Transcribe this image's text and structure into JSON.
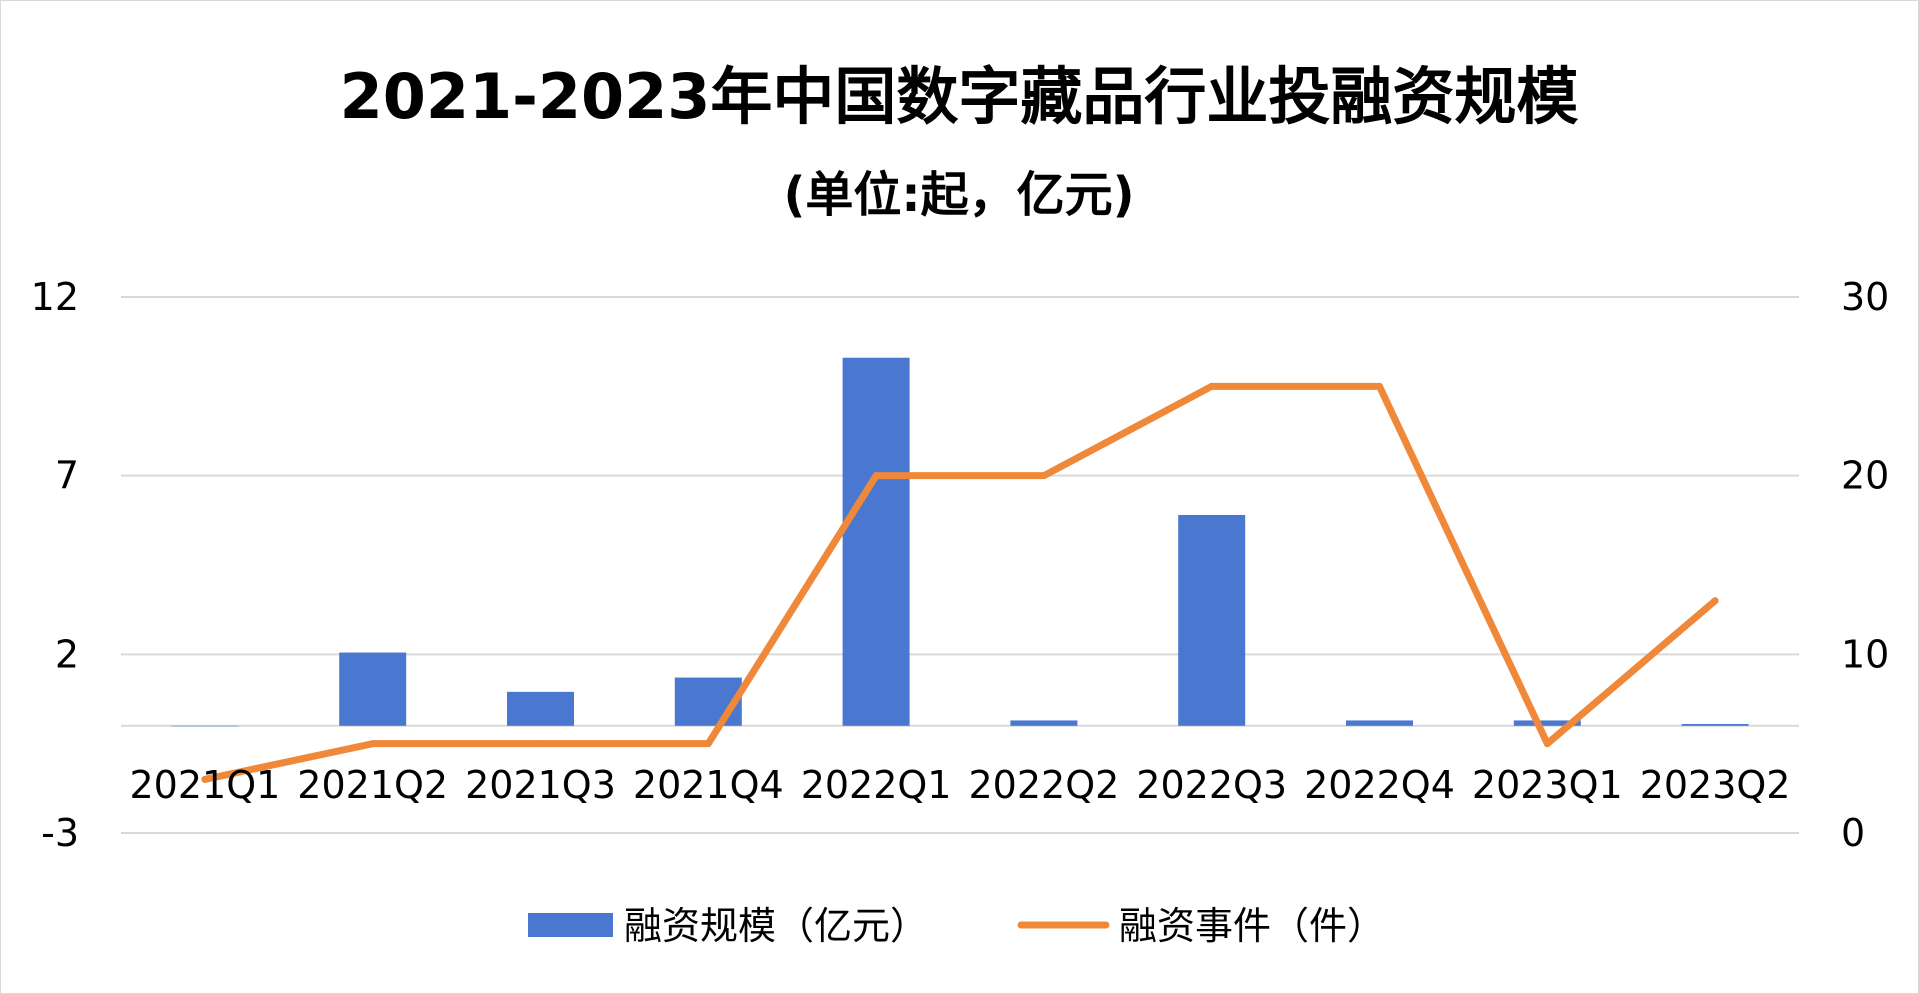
{
  "chart_data": {
    "type": "bar+line",
    "title": "2021-2023年中国数字藏品行业投融资规模",
    "subtitle": "(单位:起，亿元)",
    "categories": [
      "2021Q1",
      "2021Q2",
      "2021Q3",
      "2021Q4",
      "2022Q1",
      "2022Q2",
      "2022Q3",
      "2022Q4",
      "2023Q1",
      "2023Q2"
    ],
    "series": [
      {
        "name": "融资规模（亿元）",
        "type": "bar",
        "axis": "left",
        "color": "#4a78d0",
        "values": [
          0,
          2.05,
          0.95,
          1.35,
          10.3,
          0.15,
          5.9,
          0.15,
          0.15,
          0.05
        ]
      },
      {
        "name": "融资事件（件）",
        "type": "line",
        "axis": "right",
        "color": "#f0883a",
        "values": [
          3,
          5,
          5,
          5,
          20,
          20,
          25,
          25,
          5,
          13
        ]
      }
    ],
    "y_left": {
      "min": -3,
      "max": 12,
      "ticks": [
        "12",
        "7",
        "2",
        "-3"
      ],
      "tick_values": [
        12,
        7,
        2,
        -3
      ]
    },
    "y_right": {
      "min": 0,
      "max": 30,
      "ticks": [
        "30",
        "20",
        "10",
        "0"
      ],
      "tick_values": [
        30,
        20,
        10,
        0
      ]
    },
    "grid": true,
    "legend": "bottom"
  }
}
